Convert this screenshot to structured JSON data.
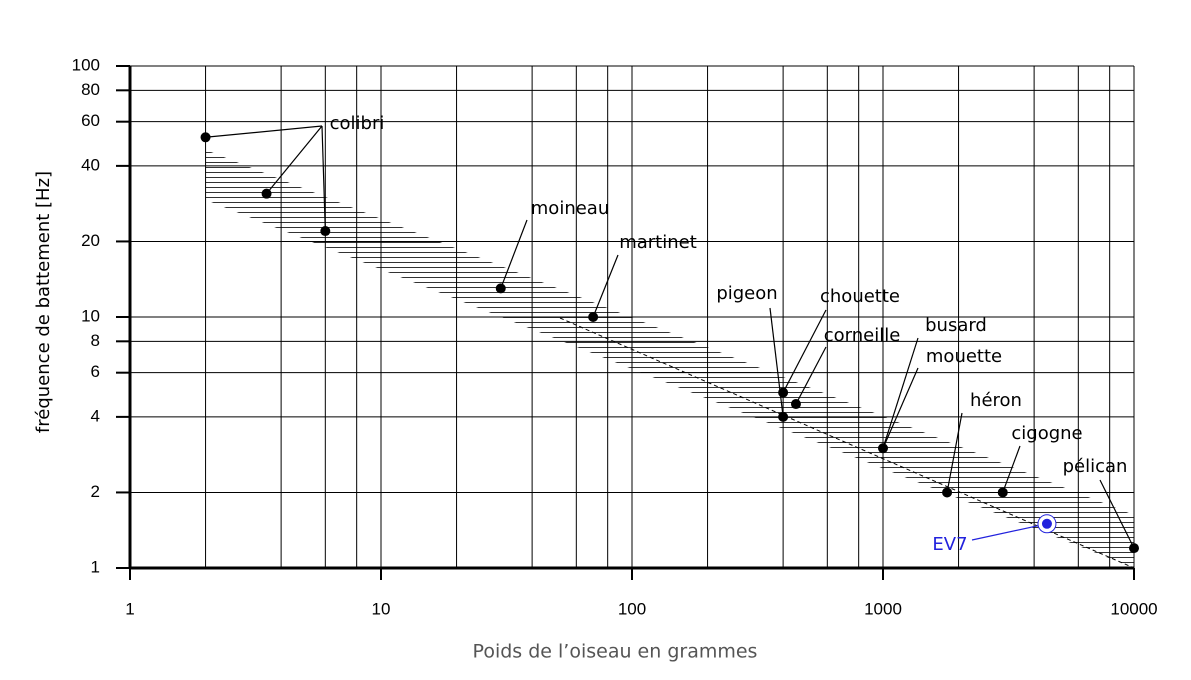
{
  "chart_data": {
    "type": "scatter",
    "xlabel": "Poids de l’oiseau en grammes",
    "ylabel": "fréquence de battement [Hz]",
    "x": [
      2,
      3.5,
      6,
      30,
      70,
      400,
      400,
      450,
      1000,
      1800,
      3000,
      10000,
      4500
    ],
    "values": [
      52,
      31,
      22,
      13,
      10,
      4,
      5,
      4.5,
      3,
      2,
      2,
      1.2,
      1.5
    ],
    "colors": [
      "#000000",
      "#000000",
      "#000000",
      "#000000",
      "#000000",
      "#000000",
      "#000000",
      "#000000",
      "#000000",
      "#000000",
      "#000000",
      "#000000",
      "#2222dd"
    ],
    "annotations": [
      {
        "text": "colibri",
        "points": [
          0,
          1,
          2
        ]
      },
      {
        "text": "moineau",
        "points": [
          3
        ]
      },
      {
        "text": "martinet",
        "points": [
          4
        ]
      },
      {
        "text": "pigeon",
        "points": [
          5
        ]
      },
      {
        "text": "chouette",
        "points": [
          6
        ]
      },
      {
        "text": "corneille",
        "points": [
          7
        ]
      },
      {
        "text": "busard",
        "points": [
          8
        ]
      },
      {
        "text": "mouette",
        "points": [
          8
        ]
      },
      {
        "text": "héron",
        "points": [
          9
        ]
      },
      {
        "text": "cigogne",
        "points": [
          10
        ]
      },
      {
        "text": "pélican",
        "points": [
          11
        ]
      },
      {
        "text": "EV7",
        "points": [
          12
        ]
      }
    ],
    "xscale": "log",
    "yscale": "log",
    "xlim": [
      1,
      10000
    ],
    "ylim": [
      1,
      100
    ],
    "xticks": [
      1,
      10,
      100,
      1000,
      10000
    ],
    "xgrid": [
      2,
      4,
      6,
      8,
      10,
      20,
      40,
      60,
      80,
      100,
      200,
      400,
      600,
      800,
      1000,
      2000,
      4000,
      6000,
      8000,
      10000
    ],
    "yticks": [
      1,
      2,
      4,
      6,
      8,
      10,
      20,
      40,
      60,
      80,
      100
    ],
    "grid": true
  }
}
